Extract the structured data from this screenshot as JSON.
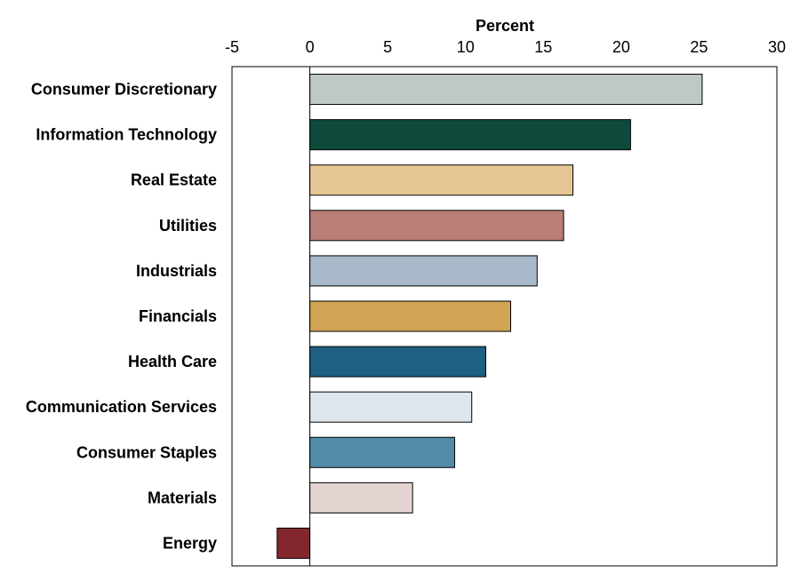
{
  "chart_data": {
    "type": "bar",
    "orientation": "horizontal",
    "xlabel": "Percent",
    "xlim": [
      -5,
      30
    ],
    "xticks": [
      "-5",
      "0",
      "5",
      "10",
      "15",
      "20",
      "25",
      "30"
    ],
    "x_axis_position": "top",
    "grid": false,
    "categories": [
      "Consumer Discretionary",
      "Information Technology",
      "Real Estate",
      "Utilities",
      "Industrials",
      "Financials",
      "Health Care",
      "Communication Services",
      "Consumer Staples",
      "Materials",
      "Energy"
    ],
    "values": [
      25.2,
      20.6,
      16.9,
      16.3,
      14.6,
      12.9,
      11.3,
      10.4,
      9.3,
      6.6,
      -2.1
    ],
    "colors": [
      "#bfc9c3",
      "#0e4a3b",
      "#e6c595",
      "#b97e76",
      "#a8b9c9",
      "#cfa454",
      "#1e5f82",
      "#dee6ed",
      "#528ca8",
      "#e3d3d1",
      "#84262d"
    ]
  }
}
